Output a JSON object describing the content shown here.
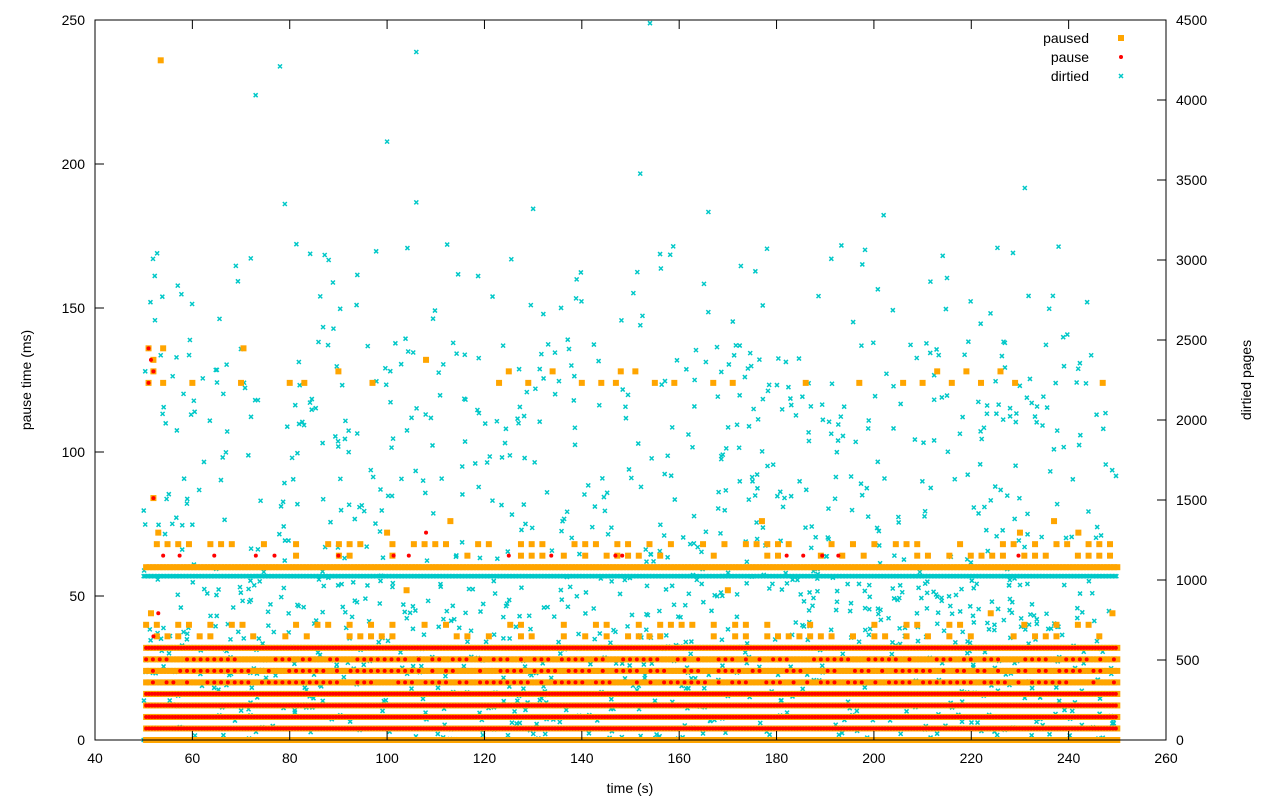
{
  "chart_data": {
    "type": "scatter",
    "xlabel": "time (s)",
    "ylabel": "pause time (ms)",
    "y2label": "dirtied pages",
    "xlim": [
      40,
      260
    ],
    "ylim": [
      0,
      250
    ],
    "y2lim": [
      0,
      4500
    ],
    "x_ticks": [
      "40",
      "60",
      "80",
      "100",
      "120",
      "140",
      "160",
      "180",
      "200",
      "220",
      "240",
      "260"
    ],
    "y_ticks": [
      "0",
      "50",
      "100",
      "150",
      "200",
      "250"
    ],
    "y2_ticks": [
      "0",
      "500",
      "1000",
      "1500",
      "2000",
      "2500",
      "3000",
      "3500",
      "4000",
      "4500"
    ],
    "legend_position": "top-right",
    "grid": false,
    "series": [
      {
        "name": "paused",
        "axis": "y1",
        "marker": "square",
        "color": "#FFA500",
        "bands_ms": [
          0,
          4,
          8,
          12,
          16,
          20,
          24,
          28,
          32,
          36,
          40,
          60,
          64,
          68
        ],
        "x_range": [
          50.5,
          250
        ],
        "outliers": [
          {
            "x": 53.5,
            "y": 236
          },
          {
            "x": 51,
            "y": 136
          },
          {
            "x": 54,
            "y": 136
          },
          {
            "x": 70.5,
            "y": 136
          },
          {
            "x": 52,
            "y": 132
          },
          {
            "x": 108,
            "y": 132
          },
          {
            "x": 52,
            "y": 128
          },
          {
            "x": 90,
            "y": 128
          },
          {
            "x": 125,
            "y": 128
          },
          {
            "x": 134,
            "y": 128
          },
          {
            "x": 148,
            "y": 128
          },
          {
            "x": 151,
            "y": 128
          },
          {
            "x": 213,
            "y": 128
          },
          {
            "x": 219,
            "y": 128
          },
          {
            "x": 226,
            "y": 128
          },
          {
            "x": 51,
            "y": 124
          },
          {
            "x": 54,
            "y": 124
          },
          {
            "x": 60,
            "y": 124
          },
          {
            "x": 70,
            "y": 124
          },
          {
            "x": 80,
            "y": 124
          },
          {
            "x": 83,
            "y": 124
          },
          {
            "x": 97,
            "y": 124
          },
          {
            "x": 123,
            "y": 124
          },
          {
            "x": 129,
            "y": 124
          },
          {
            "x": 140,
            "y": 124
          },
          {
            "x": 144,
            "y": 124
          },
          {
            "x": 147,
            "y": 124
          },
          {
            "x": 155,
            "y": 124
          },
          {
            "x": 159,
            "y": 124
          },
          {
            "x": 167,
            "y": 124
          },
          {
            "x": 171,
            "y": 124
          },
          {
            "x": 186,
            "y": 124
          },
          {
            "x": 197,
            "y": 124
          },
          {
            "x": 206,
            "y": 124
          },
          {
            "x": 210,
            "y": 124
          },
          {
            "x": 216,
            "y": 124
          },
          {
            "x": 222,
            "y": 124
          },
          {
            "x": 229,
            "y": 124
          },
          {
            "x": 247,
            "y": 124
          },
          {
            "x": 52,
            "y": 84
          },
          {
            "x": 177,
            "y": 76
          },
          {
            "x": 113,
            "y": 76
          },
          {
            "x": 237,
            "y": 76
          },
          {
            "x": 53,
            "y": 72
          },
          {
            "x": 100,
            "y": 72
          },
          {
            "x": 230,
            "y": 72
          },
          {
            "x": 242,
            "y": 72
          },
          {
            "x": 170,
            "y": 52
          },
          {
            "x": 104,
            "y": 52
          },
          {
            "x": 224,
            "y": 44
          },
          {
            "x": 249,
            "y": 44
          },
          {
            "x": 51.5,
            "y": 44
          }
        ]
      },
      {
        "name": "pause",
        "axis": "y1",
        "marker": "dot",
        "color": "#FF0000",
        "bands_ms": [
          4,
          8,
          12,
          16,
          20,
          24,
          28,
          32
        ],
        "x_range": [
          50.5,
          250
        ],
        "outliers": [
          {
            "x": 51,
            "y": 136
          },
          {
            "x": 51.5,
            "y": 132
          },
          {
            "x": 52,
            "y": 128
          },
          {
            "x": 51,
            "y": 124
          },
          {
            "x": 52,
            "y": 84
          },
          {
            "x": 108,
            "y": 72
          },
          {
            "x": 90,
            "y": 64
          },
          {
            "x": 125,
            "y": 64
          },
          {
            "x": 54,
            "y": 64
          },
          {
            "x": 53,
            "y": 44
          },
          {
            "x": 52,
            "y": 36
          }
        ]
      },
      {
        "name": "dirtied",
        "axis": "y2",
        "marker": "cross",
        "color": "#00C8C8",
        "baseline_pages": [
          0,
          1024
        ],
        "x_range": [
          50,
          250
        ],
        "scatter_range_pages": [
          0,
          4500
        ],
        "scatter_count": 1300,
        "outliers": [
          {
            "x": 154,
            "y": 4480
          },
          {
            "x": 106,
            "y": 4300
          },
          {
            "x": 78,
            "y": 4210
          },
          {
            "x": 73,
            "y": 4030
          },
          {
            "x": 100,
            "y": 3740
          },
          {
            "x": 152,
            "y": 3540
          },
          {
            "x": 231,
            "y": 3450
          },
          {
            "x": 106,
            "y": 3360
          },
          {
            "x": 79,
            "y": 3350
          },
          {
            "x": 130,
            "y": 3320
          },
          {
            "x": 166,
            "y": 3300
          },
          {
            "x": 202,
            "y": 3280
          },
          {
            "x": 88,
            "y": 3000
          },
          {
            "x": 72,
            "y": 3010
          },
          {
            "x": 57,
            "y": 2840
          }
        ]
      }
    ]
  }
}
